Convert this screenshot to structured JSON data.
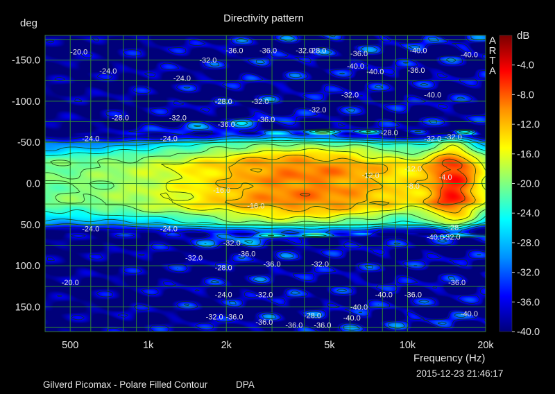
{
  "chart_data": {
    "type": "heatmap",
    "title": "Directivity pattern",
    "ylabel": "deg",
    "xlabel": "Frequency (Hz)",
    "x_scale": "log",
    "xlim": [
      400,
      20000
    ],
    "ylim": [
      -180,
      180
    ],
    "y_inverted": true,
    "x_ticks": [
      {
        "value": 500,
        "label": "500"
      },
      {
        "value": 1000,
        "label": "1k"
      },
      {
        "value": 2000,
        "label": "2k"
      },
      {
        "value": 5000,
        "label": "5k"
      },
      {
        "value": 10000,
        "label": "10k"
      },
      {
        "value": 20000,
        "label": "20k"
      }
    ],
    "y_ticks": [
      {
        "value": -150,
        "label": "-150.0"
      },
      {
        "value": -100,
        "label": "-100.0"
      },
      {
        "value": -50,
        "label": "-50.0"
      },
      {
        "value": 0,
        "label": "0.0"
      },
      {
        "value": 50,
        "label": "50.0"
      },
      {
        "value": 100,
        "label": "100.0"
      },
      {
        "value": 150,
        "label": "150.0"
      }
    ],
    "colorbar": {
      "unit": "dB",
      "min": -40,
      "max": 0,
      "ticks": [
        "-4.0",
        "-8.0",
        "-12.0",
        "-16.0",
        "-20.0",
        "-24.0",
        "-28.0",
        "-32.0",
        "-36.0",
        "-40.0"
      ],
      "colors": [
        "#00007a",
        "#0000ff",
        "#0090ff",
        "#00ffff",
        "#80ff80",
        "#ffff00",
        "#ff9000",
        "#ff0000",
        "#7a0000"
      ]
    },
    "grid": true,
    "contour_labels": [
      {
        "f": 540,
        "deg": -160,
        "label": "-20.0"
      },
      {
        "f": 700,
        "deg": -137,
        "label": "-24.0"
      },
      {
        "f": 1350,
        "deg": -128,
        "label": "-24.0"
      },
      {
        "f": 1700,
        "deg": -150,
        "label": "-32.0"
      },
      {
        "f": 2150,
        "deg": -162,
        "label": "-36.0"
      },
      {
        "f": 2900,
        "deg": -162,
        "label": "-36.0"
      },
      {
        "f": 4000,
        "deg": -162,
        "label": "-32.0"
      },
      {
        "f": 4500,
        "deg": -162,
        "label": "-28.0"
      },
      {
        "f": 6500,
        "deg": -158,
        "label": "-36.0"
      },
      {
        "f": 6300,
        "deg": -143,
        "label": "-40.0"
      },
      {
        "f": 7500,
        "deg": -136,
        "label": "-40.0"
      },
      {
        "f": 11000,
        "deg": -162,
        "label": "-40.0"
      },
      {
        "f": 10800,
        "deg": -138,
        "label": "-36.0"
      },
      {
        "f": 17300,
        "deg": -157,
        "label": "-40.0"
      },
      {
        "f": 12500,
        "deg": -108,
        "label": "-40.0"
      },
      {
        "f": 6000,
        "deg": -108,
        "label": "-32.0"
      },
      {
        "f": 4500,
        "deg": -90,
        "label": "-32.0"
      },
      {
        "f": 1950,
        "deg": -100,
        "label": "-28.0"
      },
      {
        "f": 2700,
        "deg": -100,
        "label": "-32.0"
      },
      {
        "f": 1300,
        "deg": -80,
        "label": "-32.0"
      },
      {
        "f": 2000,
        "deg": -72,
        "label": "-36.0"
      },
      {
        "f": 2850,
        "deg": -78,
        "label": "-36.0"
      },
      {
        "f": 780,
        "deg": -80,
        "label": "-28.0"
      },
      {
        "f": 600,
        "deg": -55,
        "label": "-24.0"
      },
      {
        "f": 1200,
        "deg": -55,
        "label": "-24.0"
      },
      {
        "f": 8500,
        "deg": -62,
        "label": "-28.0"
      },
      {
        "f": 12500,
        "deg": -55,
        "label": "-32.0"
      },
      {
        "f": 15000,
        "deg": -57,
        "label": "-32.0"
      },
      {
        "f": 10500,
        "deg": -18,
        "label": "-12.0"
      },
      {
        "f": 14000,
        "deg": -8,
        "label": "-4.0"
      },
      {
        "f": 10500,
        "deg": 3,
        "label": "-8.0"
      },
      {
        "f": 7200,
        "deg": -10,
        "label": "-12.0"
      },
      {
        "f": 1920,
        "deg": 8,
        "label": "-16.0"
      },
      {
        "f": 2600,
        "deg": 27,
        "label": "-16.0"
      },
      {
        "f": 600,
        "deg": 55,
        "label": "-24.0"
      },
      {
        "f": 1200,
        "deg": 55,
        "label": "-24.0"
      },
      {
        "f": 15000,
        "deg": 53,
        "label": "-28"
      },
      {
        "f": 12800,
        "deg": 65,
        "label": "-40.0"
      },
      {
        "f": 14800,
        "deg": 65,
        "label": "-32.0"
      },
      {
        "f": 2100,
        "deg": 72,
        "label": "-32.0"
      },
      {
        "f": 2400,
        "deg": 85,
        "label": "-36.0"
      },
      {
        "f": 1500,
        "deg": 90,
        "label": "-32.0"
      },
      {
        "f": 1950,
        "deg": 102,
        "label": "-28.0"
      },
      {
        "f": 3000,
        "deg": 98,
        "label": "-36.0"
      },
      {
        "f": 4600,
        "deg": 98,
        "label": "-32.0"
      },
      {
        "f": 500,
        "deg": 120,
        "label": "-20.0"
      },
      {
        "f": 1950,
        "deg": 135,
        "label": "-24.0"
      },
      {
        "f": 2800,
        "deg": 135,
        "label": "-32.0"
      },
      {
        "f": 8100,
        "deg": 135,
        "label": "-40.0"
      },
      {
        "f": 10500,
        "deg": 135,
        "label": "-36.0"
      },
      {
        "f": 15500,
        "deg": 120,
        "label": "-36.0"
      },
      {
        "f": 6500,
        "deg": 150,
        "label": "-40.0"
      },
      {
        "f": 1800,
        "deg": 162,
        "label": "-32.0"
      },
      {
        "f": 2150,
        "deg": 162,
        "label": "-36.0"
      },
      {
        "f": 2800,
        "deg": 168,
        "label": "-36.0"
      },
      {
        "f": 3650,
        "deg": 172,
        "label": "-36.0"
      },
      {
        "f": 4300,
        "deg": 160,
        "label": "-28.0"
      },
      {
        "f": 4700,
        "deg": 172,
        "label": "-36.0"
      },
      {
        "f": 6100,
        "deg": 163,
        "label": "-40.0"
      },
      {
        "f": 17300,
        "deg": 158,
        "label": "-40.0"
      }
    ]
  },
  "brand": "ARTA",
  "timestamp": "2015-12-23  21:46:17",
  "footer": {
    "left": "Gilverd Picomax - Polare Filled Contour",
    "mid": "DPA"
  }
}
